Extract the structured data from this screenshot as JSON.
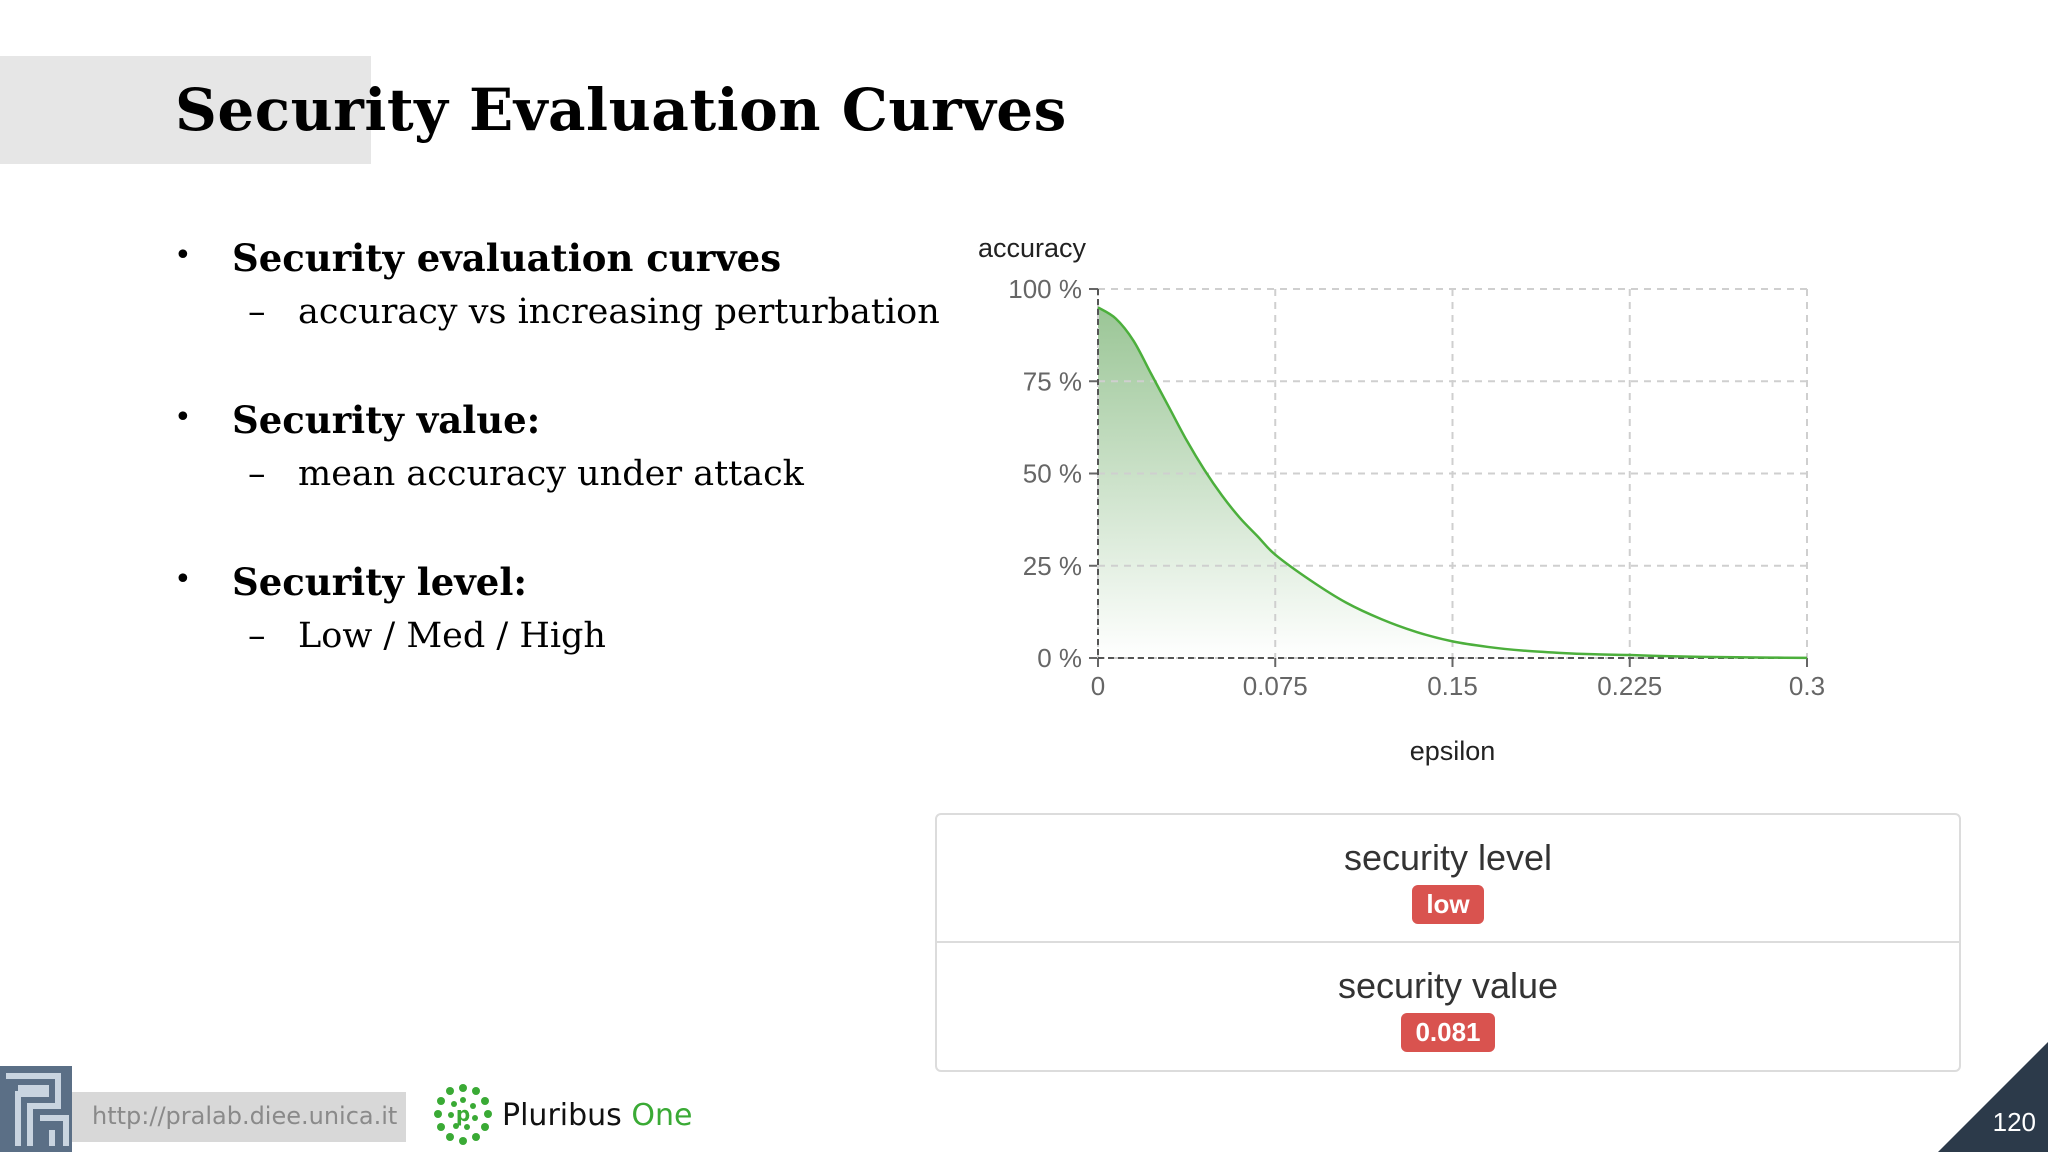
{
  "slide": {
    "title": "Security Evaluation Curves",
    "page_number": "120"
  },
  "bullets": [
    {
      "label": "Security evaluation curves",
      "sub": "accuracy vs increasing perturbation"
    },
    {
      "label": "Security value:",
      "sub": "mean accuracy under attack"
    },
    {
      "label": "Security level:",
      "sub": "Low / Med / High"
    }
  ],
  "bullet_marker": "•",
  "sub_marker": "–",
  "chart_data": {
    "type": "area",
    "xlabel": "epsilon",
    "ylabel": "accuracy",
    "x_ticks": [
      "0",
      "0.075",
      "0.15",
      "0.225",
      "0.3"
    ],
    "y_ticks": [
      "0 %",
      "25 %",
      "50 %",
      "75 %",
      "100 %"
    ],
    "xlim": [
      0,
      0.3
    ],
    "ylim": [
      0,
      100
    ],
    "grid": true,
    "series": [
      {
        "x": [
          0,
          0.0075,
          0.015,
          0.0225,
          0.03,
          0.0375,
          0.045,
          0.0525,
          0.06,
          0.0675,
          0.075,
          0.09,
          0.105,
          0.12,
          0.135,
          0.15,
          0.165,
          0.18,
          0.195,
          0.21,
          0.225,
          0.24,
          0.255,
          0.27,
          0.285,
          0.3
        ],
        "y": [
          95,
          92,
          86,
          77,
          68,
          59,
          51,
          44,
          38,
          33,
          28,
          21,
          15,
          10.5,
          7,
          4.5,
          3,
          2,
          1.4,
          1,
          0.8,
          0.5,
          0.3,
          0.2,
          0.1,
          0.05
        ]
      }
    ],
    "line_color": "#4caf3c",
    "fill_color": "#8fbf8a"
  },
  "security": {
    "level_label": "security level",
    "level_value": "low",
    "value_label": "security value",
    "value_value": "0.081",
    "badge_color": "#d9534f"
  },
  "footer": {
    "url": "http://pralab.diee.unica.it",
    "brand_a": "Pluribus",
    "brand_b": "One"
  }
}
